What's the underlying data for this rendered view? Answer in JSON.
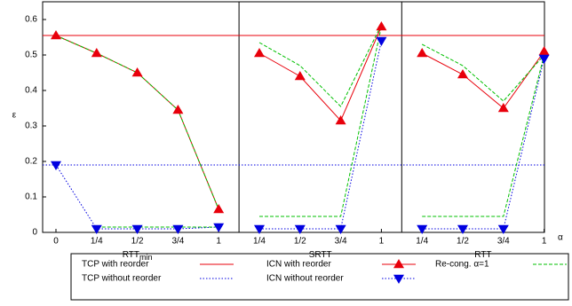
{
  "chart_data": {
    "type": "line",
    "y_label": "ε",
    "x_label": "α",
    "ylim": [
      0,
      0.65
    ],
    "yticks": [
      0,
      0.1,
      0.2,
      0.3,
      0.4,
      0.5,
      0.6
    ],
    "panels": [
      {
        "label": "RTT",
        "sub": "min",
        "categories": [
          "0",
          "1/4",
          "1/2",
          "3/4",
          "1"
        ]
      },
      {
        "label": "SRTT",
        "categories": [
          "1/4",
          "1/2",
          "3/4",
          "1"
        ]
      },
      {
        "label": "RTT",
        "categories": [
          "1/4",
          "1/2",
          "3/4",
          "1"
        ]
      }
    ],
    "tcp_with_reorder": {
      "name": "TCP with reorder",
      "color": "#e8000b",
      "value": 0.555
    },
    "tcp_without_reorder": {
      "name": "TCP without reorder",
      "color": "#0000e0",
      "value": 0.19
    },
    "icn_with_reorder": {
      "name": "ICN with reorder",
      "color": "#e8000b",
      "values": [
        [
          0.555,
          0.505,
          0.45,
          0.345,
          0.065
        ],
        [
          0.505,
          0.44,
          0.315,
          0.58
        ],
        [
          0.505,
          0.445,
          0.35,
          0.51
        ]
      ]
    },
    "icn_without_reorder": {
      "name": "ICN without reorder",
      "color": "#0000e0",
      "values": [
        [
          0.19,
          0.01,
          0.01,
          0.01,
          0.015
        ],
        [
          0.01,
          0.01,
          0.01,
          0.54
        ],
        [
          0.01,
          0.01,
          0.01,
          0.49
        ]
      ]
    },
    "recong": {
      "name": "Re-cong. α=1",
      "color": "#00c000",
      "with_reorder": [
        [
          0.555,
          0.505,
          0.45,
          0.345,
          0.065
        ],
        [
          0.535,
          0.47,
          0.355,
          0.585
        ],
        [
          0.53,
          0.47,
          0.37,
          0.5
        ]
      ],
      "without_reorder": [
        [
          null,
          0.015,
          0.015,
          0.015,
          0.015
        ],
        [
          0.045,
          0.045,
          0.045,
          0.58
        ],
        [
          0.045,
          0.045,
          0.045,
          0.5
        ]
      ]
    }
  }
}
